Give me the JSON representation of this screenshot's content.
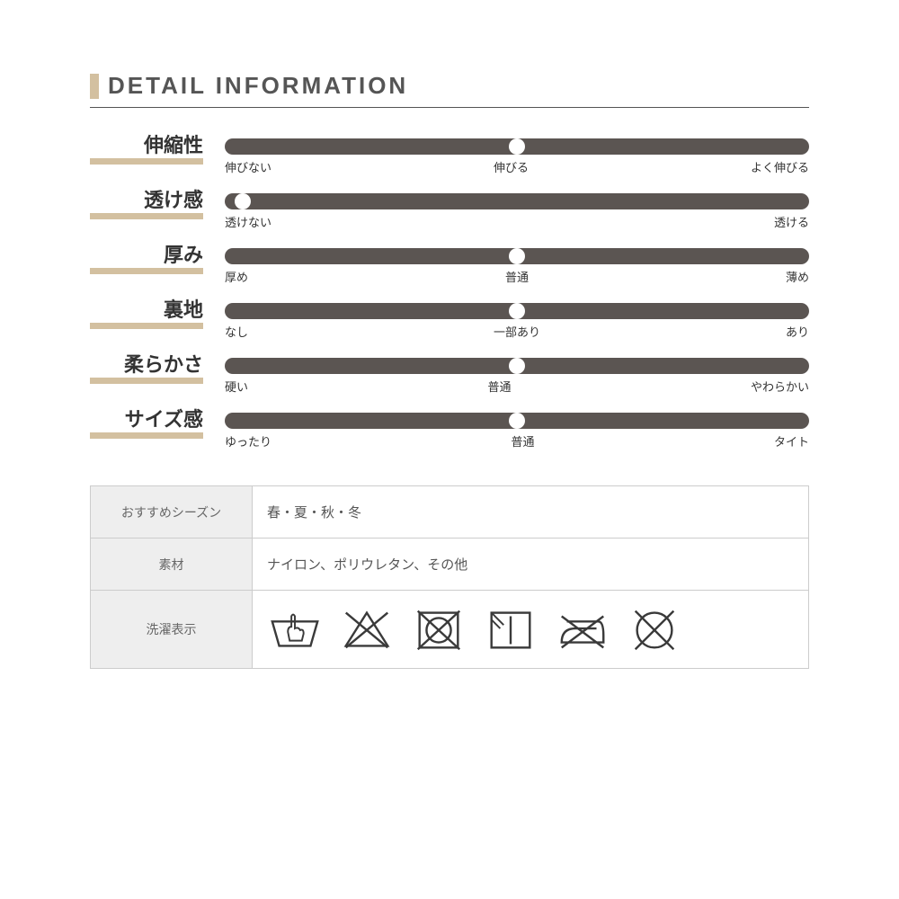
{
  "colors": {
    "accent": "#d3c0a0",
    "bar": "#5b5552",
    "knob": "#ffffff",
    "title_text": "#555555",
    "underline": "#555555",
    "label_bg": "#eeeeee",
    "table_border": "#cccccc",
    "icon_stroke": "#3a3a3a",
    "background": "#ffffff"
  },
  "title": "DETAIL INFORMATION",
  "attributes": [
    {
      "name": "伸縮性",
      "labels": [
        "伸びない",
        "伸びる",
        "よく伸びる"
      ],
      "knob_pct": 50
    },
    {
      "name": "透け感",
      "labels": [
        "透けない",
        "",
        "透ける"
      ],
      "knob_pct": 3
    },
    {
      "name": "厚み",
      "labels": [
        "厚め",
        "普通",
        "薄め"
      ],
      "knob_pct": 50
    },
    {
      "name": "裏地",
      "labels": [
        "なし",
        "一部あり",
        "あり"
      ],
      "knob_pct": 50
    },
    {
      "name": "柔らかさ",
      "labels": [
        "硬い",
        "普通",
        "やわらかい"
      ],
      "knob_pct": 50
    },
    {
      "name": "サイズ感",
      "labels": [
        "ゆったり",
        "普通",
        "タイト"
      ],
      "knob_pct": 50
    }
  ],
  "info_rows": [
    {
      "label": "おすすめシーズン",
      "value": "春・夏・秋・冬"
    },
    {
      "label": "素材",
      "value": "ナイロン、ポリウレタン、その他"
    }
  ],
  "care_row_label": "洗濯表示",
  "care_icons": [
    "handwash",
    "no-bleach",
    "no-tumble-dry",
    "dry-shade",
    "no-iron",
    "no-dryclean"
  ],
  "style": {
    "title_fontsize": 26,
    "attr_name_fontsize": 22,
    "slider_label_fontsize": 13,
    "table_label_fontsize": 14,
    "table_value_fontsize": 15,
    "track_height": 18,
    "knob_diameter": 18
  }
}
